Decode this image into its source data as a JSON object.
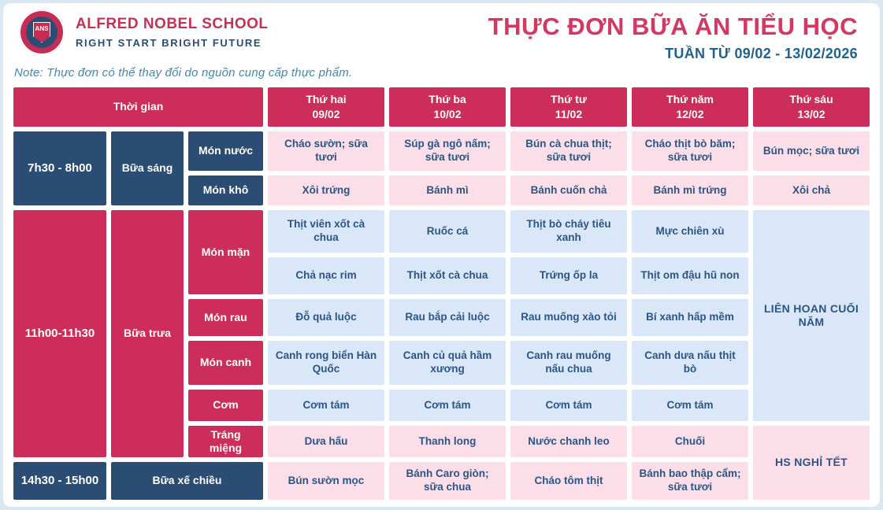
{
  "header": {
    "school_name": "ALFRED NOBEL SCHOOL",
    "school_slogan": "RIGHT START  BRIGHT FUTURE",
    "logo_abbr": "ANS",
    "title": "THỰC ĐƠN BỮA ĂN TIỂU HỌC",
    "subtitle": "TUẦN TỪ 09/02 - 13/02/2026",
    "note": "Note: Thực đơn có thể thay đổi do nguồn cung cấp thực phẩm."
  },
  "table": {
    "time_header": "Thời gian",
    "days": [
      {
        "name": "Thứ hai",
        "date": "09/02"
      },
      {
        "name": "Thứ ba",
        "date": "10/02"
      },
      {
        "name": "Thứ tư",
        "date": "11/02"
      },
      {
        "name": "Thứ năm",
        "date": "12/02"
      },
      {
        "name": "Thứ sáu",
        "date": "13/02"
      }
    ],
    "times": {
      "breakfast": "7h30 - 8h00",
      "lunch": "11h00-11h30",
      "afternoon": "14h30 - 15h00"
    },
    "meals": {
      "breakfast": "Bữa sáng",
      "lunch": "Bữa trưa",
      "afternoon": "Bữa xế chiều"
    },
    "row_labels": {
      "mon_nuoc": "Món nước",
      "mon_kho": "Món khô",
      "mon_man": "Món mặn",
      "mon_rau": "Món rau",
      "mon_canh": "Món canh",
      "com": "Cơm",
      "trang_mieng": "Tráng miệng"
    },
    "menu": {
      "mon_nuoc": [
        "Cháo sườn; sữa tươi",
        "Súp gà ngô nấm; sữa tươi",
        "Bún cà chua thịt; sữa tươi",
        "Cháo thịt bò băm; sữa tươi",
        "Bún mọc; sữa tươi"
      ],
      "mon_kho": [
        "Xôi trứng",
        "Bánh mì",
        "Bánh cuốn chả",
        "Bánh mì trứng",
        "Xôi chả"
      ],
      "mon_man_1": [
        "Thịt viên xốt cà chua",
        "Ruốc cá",
        "Thịt bò cháy tiêu xanh",
        "Mực chiên xù"
      ],
      "mon_man_2": [
        "Chả nạc rim",
        "Thịt xốt cà chua",
        "Trứng ốp la",
        "Thịt om đậu hũ non"
      ],
      "mon_rau": [
        "Đỗ quả luộc",
        "Rau bắp cải luộc",
        "Rau muống xào tỏi",
        "Bí xanh hấp mềm"
      ],
      "mon_canh": [
        "Canh rong biển Hàn Quốc",
        "Canh củ quả hầm xương",
        "Canh rau muống nấu chua",
        "Canh dưa nấu thịt bò"
      ],
      "com": [
        "Cơm tám",
        "Cơm tám",
        "Cơm tám",
        "Cơm tám"
      ],
      "trang_mieng": [
        "Dưa hấu",
        "Thanh long",
        "Nước chanh leo",
        "Chuối"
      ],
      "xe_chieu": [
        "Bún sườn mọc",
        "Bánh Caro giòn; sữa chua",
        "Cháo tôm thịt",
        "Bánh bao thập cẩm; sữa tươi"
      ]
    },
    "friday_special": {
      "lunch_event": "LIÊN HOAN CUỐI NĂM",
      "holiday": "HS NGHỈ TẾT"
    }
  },
  "colors": {
    "crimson": "#cd2d5b",
    "navy": "#2b4d74",
    "pink_cell": "#fbdee7",
    "blue_cell": "#d9e7f8",
    "title": "#d53763",
    "subtitle": "#1c6290"
  }
}
